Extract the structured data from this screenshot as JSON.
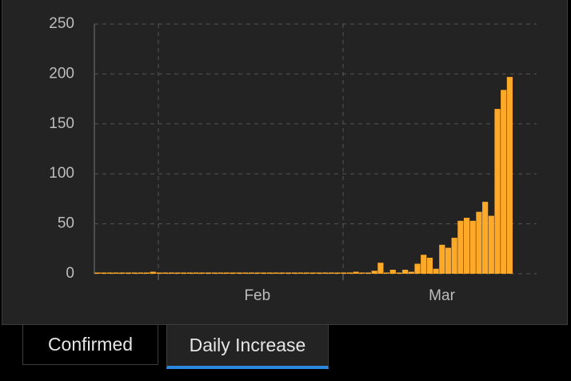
{
  "chart_data": {
    "type": "bar",
    "categories": [
      null,
      null,
      null,
      null,
      null,
      null,
      null,
      null,
      null,
      null,
      null,
      null,
      null,
      null,
      null,
      null,
      null,
      null,
      null,
      null,
      null,
      null,
      null,
      null,
      null,
      null,
      "Feb",
      null,
      null,
      null,
      null,
      null,
      null,
      null,
      null,
      null,
      null,
      null,
      null,
      null,
      null,
      null,
      null,
      null,
      null,
      null,
      null,
      null,
      null,
      null,
      null,
      null,
      null,
      null,
      null,
      null,
      "Mar",
      null,
      null,
      null,
      null,
      null,
      null,
      null,
      null,
      null,
      null,
      null
    ],
    "values": [
      0,
      0,
      0,
      0,
      0,
      0,
      0,
      0,
      0,
      2,
      0,
      0,
      0,
      0,
      0,
      0,
      0,
      0,
      0,
      0,
      0,
      0,
      0,
      0,
      0,
      0,
      0,
      0,
      0,
      0,
      0,
      0,
      0,
      0,
      0,
      0,
      0,
      0,
      0,
      0,
      0,
      0,
      2,
      0,
      1,
      3,
      11,
      1,
      4,
      1,
      4,
      2,
      10,
      19,
      16,
      5,
      29,
      26,
      36,
      53,
      56,
      53,
      62,
      72,
      58,
      165,
      184,
      197
    ],
    "color": "#ffa928",
    "ylim": [
      0,
      250
    ],
    "yticks": [
      0,
      50,
      100,
      150,
      200,
      250
    ],
    "grid": true
  },
  "tabs": [
    "Confirmed",
    "Daily Increase"
  ]
}
